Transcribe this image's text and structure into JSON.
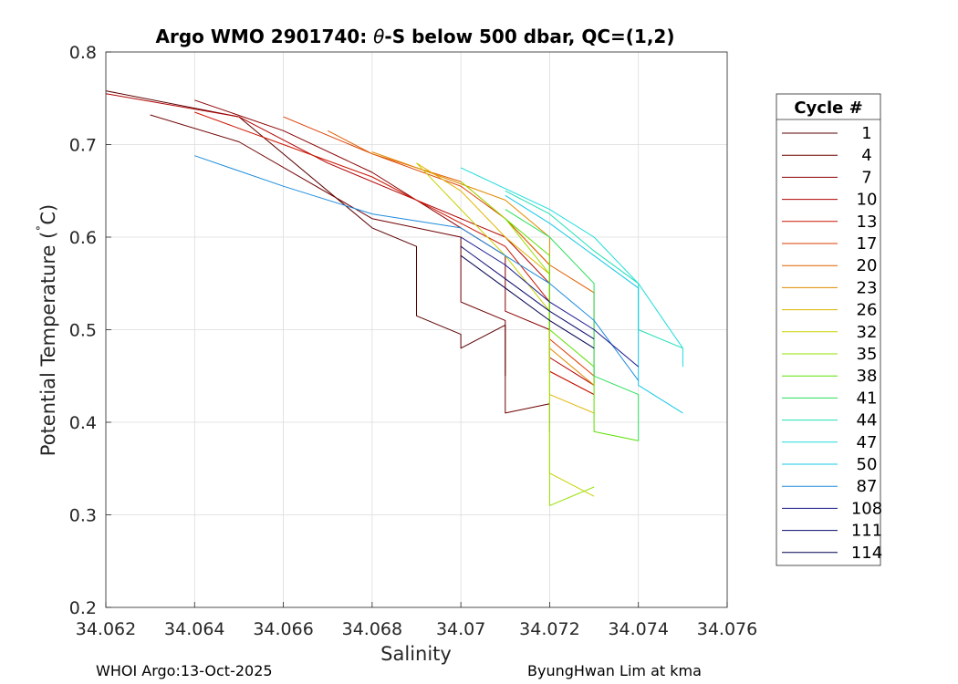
{
  "chart_data": {
    "type": "line",
    "title_prefix": "Argo WMO 2901740: ",
    "title_symbol": "θ",
    "title_suffix": "-S below 500 dbar,  QC=(1,2)",
    "xlabel": "Salinity",
    "ylabel_main": "Potential Temperature (",
    "ylabel_deg": "˚",
    "ylabel_end": "C)",
    "xlim": [
      34.062,
      34.076
    ],
    "ylim": [
      0.2,
      0.8
    ],
    "x_ticks": [
      "34.062",
      "34.064",
      "34.066",
      "34.068",
      "34.07",
      "34.072",
      "34.074",
      "34.076"
    ],
    "y_ticks": [
      "0.2",
      "0.3",
      "0.4",
      "0.5",
      "0.6",
      "0.7",
      "0.8"
    ],
    "grid": true,
    "legend_title": "Cycle #",
    "legend_position": "right-outside",
    "series": [
      {
        "name": "1",
        "color": "#5a0000",
        "x": [
          34.062,
          34.065,
          34.068,
          34.069,
          34.069,
          34.07,
          34.07,
          34.071,
          34.071
        ],
        "y": [
          0.758,
          0.73,
          0.61,
          0.59,
          0.515,
          0.495,
          0.48,
          0.505,
          0.45
        ]
      },
      {
        "name": "4",
        "color": "#6e0000",
        "x": [
          34.063,
          34.065,
          34.068,
          34.07,
          34.07,
          34.071,
          34.071,
          34.072,
          34.072
        ],
        "y": [
          0.732,
          0.703,
          0.62,
          0.6,
          0.53,
          0.51,
          0.41,
          0.42,
          0.39
        ]
      },
      {
        "name": "7",
        "color": "#8a0000",
        "x": [
          34.064,
          34.066,
          34.068,
          34.07,
          34.071,
          34.071,
          34.072,
          34.072,
          34.073
        ],
        "y": [
          0.748,
          0.715,
          0.67,
          0.61,
          0.58,
          0.52,
          0.5,
          0.455,
          0.43
        ]
      },
      {
        "name": "10",
        "color": "#b00000",
        "x": [
          34.062,
          34.065,
          34.067,
          34.069,
          34.071,
          34.072,
          34.072,
          34.073
        ],
        "y": [
          0.755,
          0.73,
          0.68,
          0.64,
          0.6,
          0.55,
          0.47,
          0.44
        ]
      },
      {
        "name": "13",
        "color": "#cc1400",
        "x": [
          34.064,
          34.066,
          34.068,
          34.069,
          34.071,
          34.072,
          34.072,
          34.073
        ],
        "y": [
          0.735,
          0.7,
          0.665,
          0.64,
          0.59,
          0.53,
          0.455,
          0.43
        ]
      },
      {
        "name": "17",
        "color": "#dc3c00",
        "x": [
          34.066,
          34.068,
          34.07,
          34.071,
          34.072,
          34.072,
          34.073
        ],
        "y": [
          0.73,
          0.69,
          0.655,
          0.62,
          0.57,
          0.49,
          0.45
        ]
      },
      {
        "name": "20",
        "color": "#e06000",
        "x": [
          34.067,
          34.068,
          34.07,
          34.071,
          34.072,
          34.073,
          34.073
        ],
        "y": [
          0.715,
          0.69,
          0.66,
          0.62,
          0.57,
          0.54,
          0.44
        ]
      },
      {
        "name": "23",
        "color": "#e08a00",
        "x": [
          34.068,
          34.069,
          34.071,
          34.072,
          34.072,
          34.073
        ],
        "y": [
          0.692,
          0.675,
          0.64,
          0.6,
          0.48,
          0.44
        ]
      },
      {
        "name": "26",
        "color": "#e0b400",
        "x": [
          34.069,
          34.07,
          34.071,
          34.072,
          34.072,
          34.073
        ],
        "y": [
          0.68,
          0.65,
          0.6,
          0.56,
          0.43,
          0.41
        ]
      },
      {
        "name": "32",
        "color": "#c8d200",
        "x": [
          34.069,
          34.07,
          34.071,
          34.072,
          34.072,
          34.073
        ],
        "y": [
          0.68,
          0.63,
          0.58,
          0.52,
          0.345,
          0.32
        ]
      },
      {
        "name": "35",
        "color": "#96e000",
        "x": [
          34.07,
          34.071,
          34.072,
          34.072,
          34.073
        ],
        "y": [
          0.66,
          0.62,
          0.56,
          0.31,
          0.33
        ]
      },
      {
        "name": "38",
        "color": "#5ae000",
        "x": [
          34.071,
          34.072,
          34.072,
          34.073,
          34.073,
          34.074
        ],
        "y": [
          0.62,
          0.58,
          0.5,
          0.46,
          0.39,
          0.38
        ]
      },
      {
        "name": "41",
        "color": "#28e05a",
        "x": [
          34.071,
          34.072,
          34.073,
          34.073,
          34.074,
          34.074
        ],
        "y": [
          0.63,
          0.6,
          0.55,
          0.45,
          0.43,
          0.38
        ]
      },
      {
        "name": "44",
        "color": "#20e0b4",
        "x": [
          34.071,
          34.072,
          34.073,
          34.074,
          34.074,
          34.075
        ],
        "y": [
          0.65,
          0.625,
          0.585,
          0.55,
          0.5,
          0.48
        ]
      },
      {
        "name": "47",
        "color": "#20dcdc",
        "x": [
          34.07,
          34.072,
          34.073,
          34.074,
          34.075,
          34.075
        ],
        "y": [
          0.675,
          0.63,
          0.6,
          0.55,
          0.48,
          0.46
        ]
      },
      {
        "name": "50",
        "color": "#14c8e6",
        "x": [
          34.071,
          34.072,
          34.073,
          34.074,
          34.074,
          34.075
        ],
        "y": [
          0.645,
          0.615,
          0.58,
          0.545,
          0.44,
          0.41
        ]
      },
      {
        "name": "87",
        "color": "#1e8cdc",
        "x": [
          34.064,
          34.066,
          34.068,
          34.07,
          34.071,
          34.072,
          34.073,
          34.074
        ],
        "y": [
          0.688,
          0.655,
          0.625,
          0.61,
          0.58,
          0.55,
          0.51,
          0.445
        ]
      },
      {
        "name": "108",
        "color": "#14148c",
        "x": [
          34.07,
          34.071,
          34.072,
          34.073,
          34.074
        ],
        "y": [
          0.6,
          0.57,
          0.53,
          0.5,
          0.46
        ]
      },
      {
        "name": "111",
        "color": "#0a0a6e",
        "x": [
          34.07,
          34.071,
          34.072,
          34.073
        ],
        "y": [
          0.59,
          0.555,
          0.52,
          0.49
        ]
      },
      {
        "name": "114",
        "color": "#000050",
        "x": [
          34.07,
          34.071,
          34.072,
          34.073
        ],
        "y": [
          0.58,
          0.545,
          0.51,
          0.48
        ]
      }
    ]
  },
  "footer": {
    "left": "WHOI Argo:13-Oct-2025",
    "right": "ByungHwan Lim at kma"
  }
}
